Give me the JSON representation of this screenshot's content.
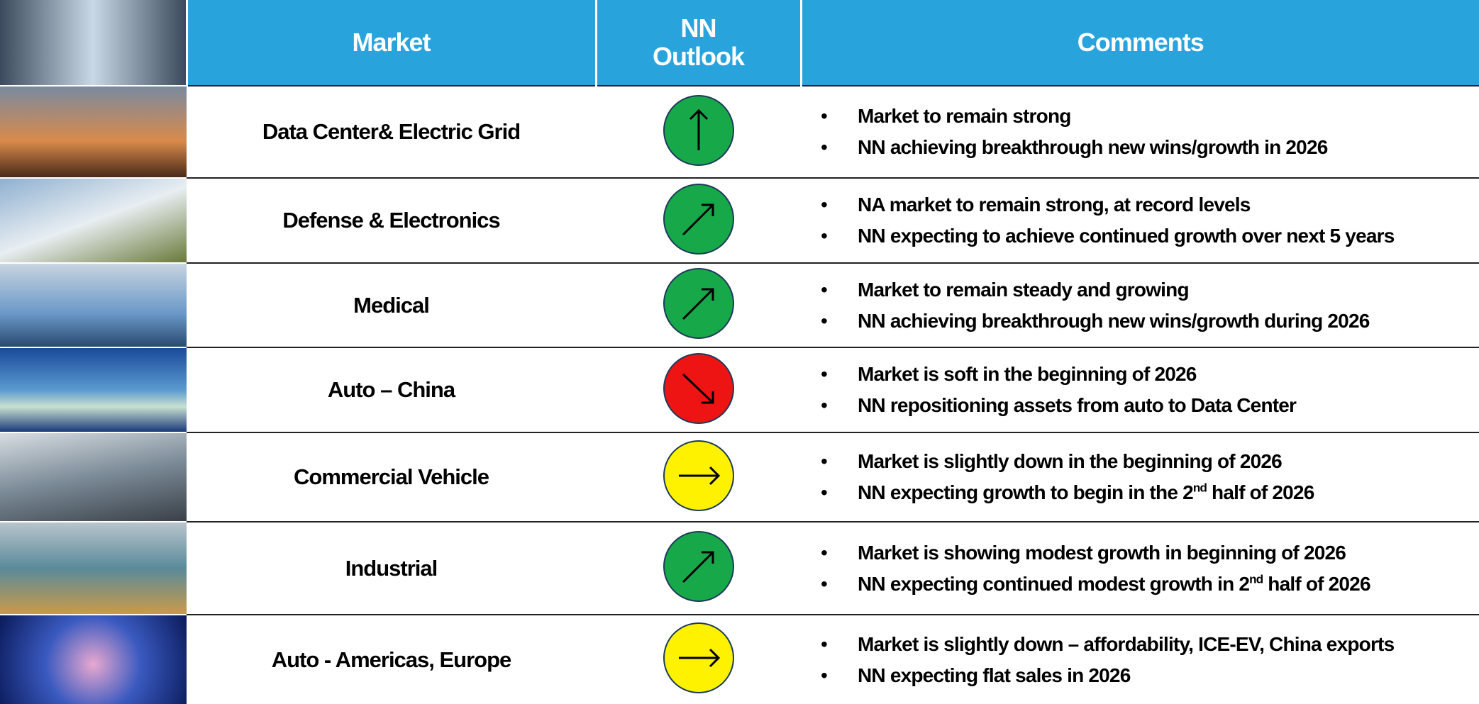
{
  "header": {
    "columns": [
      "Market",
      "NN Outlook",
      "Comments"
    ]
  },
  "table": {
    "rows": [
      {
        "market": "Data Center& Electric Grid",
        "comments": [
          "Market to remain strong",
          "NN achieving breakthrough new wins/growth in 2026"
        ]
      },
      {
        "market": "Defense & Electronics",
        "comments": [
          "NA market to remain strong, at record levels",
          "NN expecting to achieve continued growth over next 5 years"
        ]
      },
      {
        "market": "Medical",
        "comments": [
          "Market to remain steady and growing",
          "NN achieving breakthrough new wins/growth during 2026"
        ]
      },
      {
        "market": "Auto – China",
        "comments": [
          "Market is soft in the beginning of 2026",
          "NN repositioning assets from auto to Data Center"
        ]
      },
      {
        "market": "Commercial Vehicle",
        "comments": [
          "Market is slightly down in the beginning of 2026",
          [
            "NN expecting growth to begin in the 2",
            "nd",
            " half of 2026"
          ]
        ]
      },
      {
        "market": "Industrial",
        "comments": [
          "Market is showing modest growth in beginning of 2026",
          [
            "NN expecting continued modest growth in 2",
            "nd",
            " half of 2026"
          ]
        ]
      },
      {
        "market": "Auto - Americas, Europe",
        "comments": [
          "Market is slightly down – affordability, ICE-EV, China exports",
          "NN expecting flat sales in 2026"
        ]
      }
    ]
  }
}
